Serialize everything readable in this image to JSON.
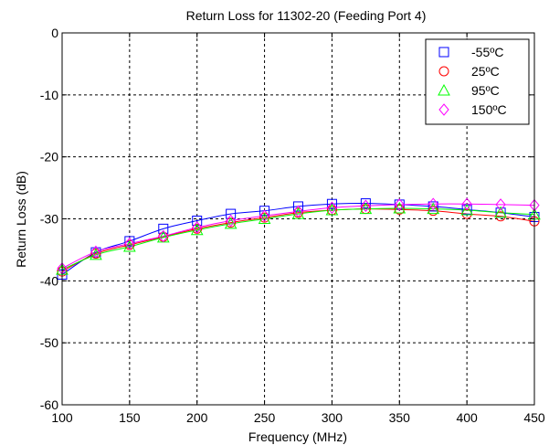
{
  "chart_data": {
    "type": "line",
    "title": "Return Loss for 11302-20 (Feeding Port 4)",
    "xlabel": "Frequency (MHz)",
    "ylabel": "Return Loss (dB)",
    "xlim": [
      100,
      450
    ],
    "ylim": [
      -60,
      0
    ],
    "xticks": [
      100,
      150,
      200,
      250,
      300,
      350,
      400,
      450
    ],
    "yticks": [
      0,
      -10,
      -20,
      -30,
      -40,
      -50,
      -60
    ],
    "grid": true,
    "legend_position": "top-right",
    "x": [
      100,
      125,
      150,
      175,
      200,
      225,
      250,
      275,
      300,
      325,
      350,
      375,
      400,
      425,
      450
    ],
    "series": [
      {
        "name": "-55ºC",
        "marker": "square",
        "color": "#0000ff",
        "values": [
          -39.0,
          -35.4,
          -33.6,
          -31.6,
          -30.3,
          -29.2,
          -28.7,
          -28.0,
          -27.6,
          -27.5,
          -27.7,
          -28.0,
          -28.5,
          -29.0,
          -29.7
        ]
      },
      {
        "name": "25ºC",
        "marker": "circle",
        "color": "#ff0000",
        "values": [
          -38.5,
          -35.6,
          -34.2,
          -32.9,
          -31.6,
          -30.6,
          -29.8,
          -29.0,
          -28.6,
          -28.4,
          -28.5,
          -28.7,
          -29.2,
          -29.6,
          -30.4
        ]
      },
      {
        "name": "95ºC",
        "marker": "triangle",
        "color": "#00ff00",
        "values": [
          -38.2,
          -35.8,
          -34.5,
          -33.0,
          -31.8,
          -30.8,
          -30.0,
          -29.2,
          -28.6,
          -28.4,
          -28.3,
          -28.4,
          -28.6,
          -29.0,
          -29.3
        ]
      },
      {
        "name": "150ºC",
        "marker": "diamond",
        "color": "#ff00ff",
        "values": [
          -38.0,
          -35.3,
          -34.0,
          -32.8,
          -31.4,
          -30.3,
          -29.5,
          -28.8,
          -28.2,
          -27.9,
          -27.7,
          -27.6,
          -27.6,
          -27.7,
          -27.8
        ]
      }
    ]
  }
}
